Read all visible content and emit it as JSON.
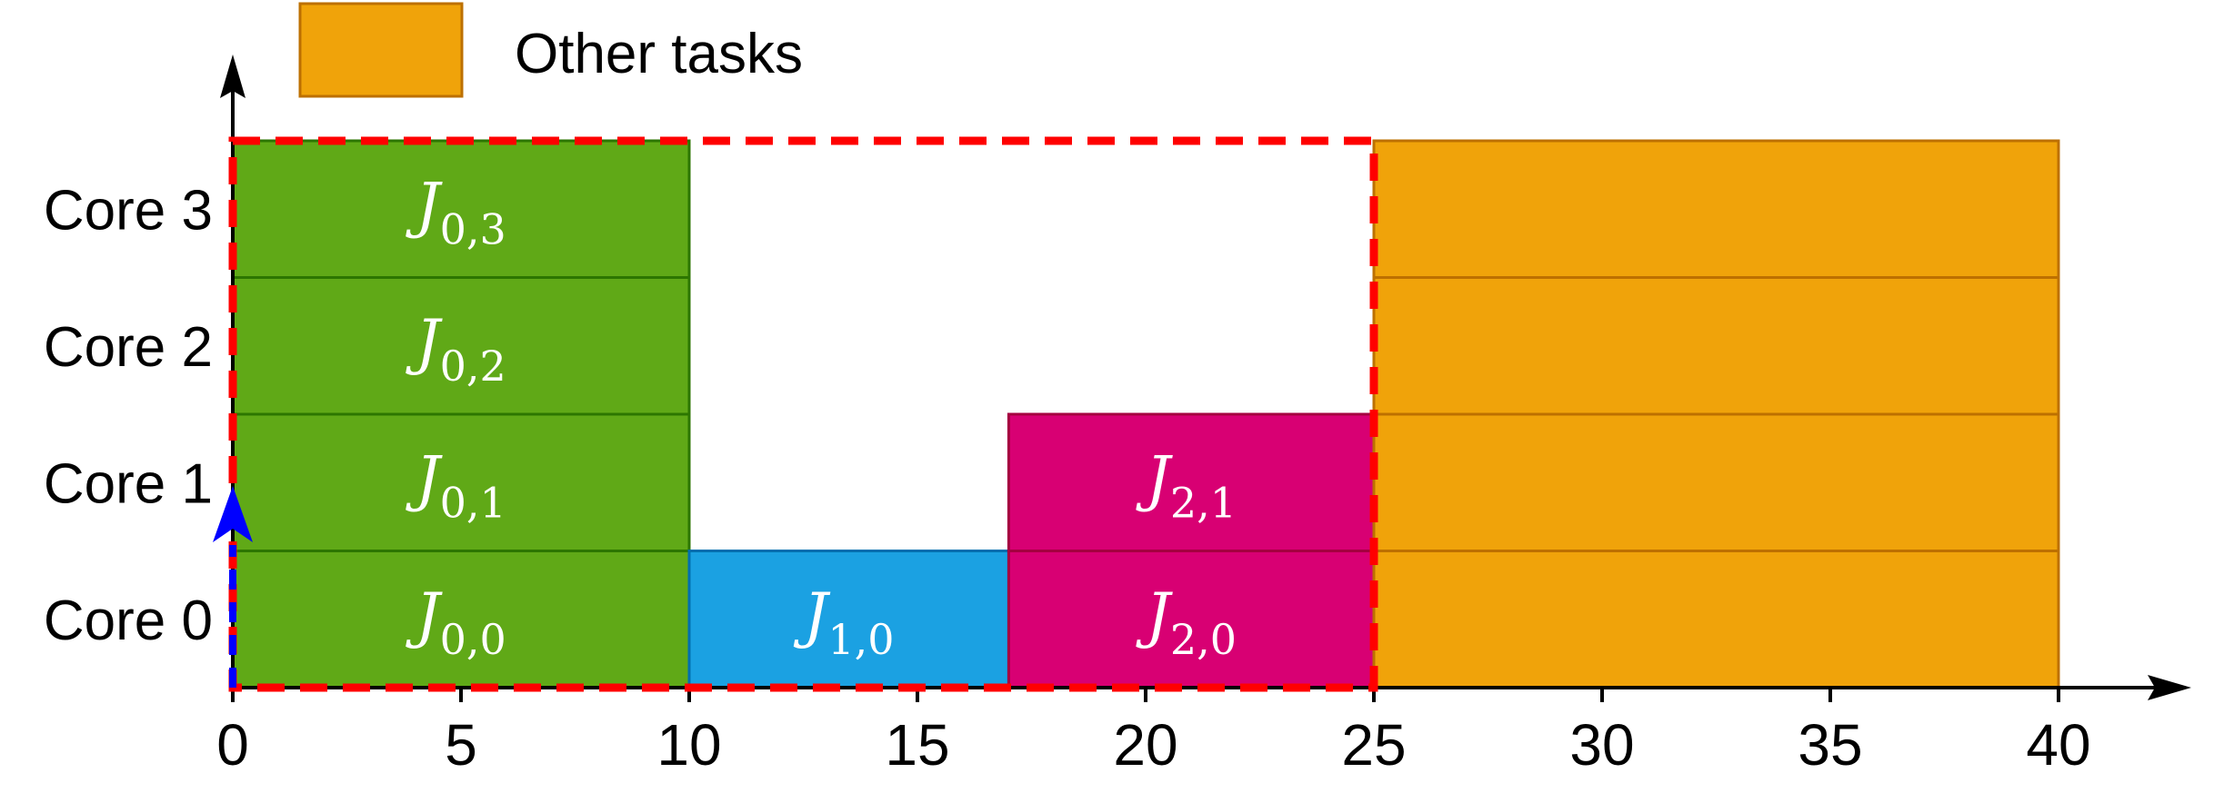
{
  "chart_data": {
    "type": "gantt",
    "title": "",
    "xlabel": "",
    "ylabel": "",
    "xlim": [
      0,
      40
    ],
    "x_ticks": [
      0,
      5,
      10,
      15,
      20,
      25,
      30,
      35,
      40
    ],
    "cores": [
      "Core 0",
      "Core 1",
      "Core 2",
      "Core 3"
    ],
    "legend": [
      {
        "label": "Other tasks",
        "color": "#F0A30A",
        "position": "top-left"
      }
    ],
    "jobs": [
      {
        "label_base": "J",
        "sub": "0,0",
        "core": 0,
        "start": 0,
        "end": 10,
        "color": "#60A917",
        "edge": "#2D7600"
      },
      {
        "label_base": "J",
        "sub": "0,1",
        "core": 1,
        "start": 0,
        "end": 10,
        "color": "#60A917",
        "edge": "#2D7600"
      },
      {
        "label_base": "J",
        "sub": "0,2",
        "core": 2,
        "start": 0,
        "end": 10,
        "color": "#60A917",
        "edge": "#2D7600"
      },
      {
        "label_base": "J",
        "sub": "0,3",
        "core": 3,
        "start": 0,
        "end": 10,
        "color": "#60A917",
        "edge": "#2D7600"
      },
      {
        "label_base": "J",
        "sub": "1,0",
        "core": 0,
        "start": 10,
        "end": 17,
        "color": "#1BA1E2",
        "edge": "#006EAF"
      },
      {
        "label_base": "J",
        "sub": "2,0",
        "core": 0,
        "start": 17,
        "end": 25,
        "color": "#D80073",
        "edge": "#A50040"
      },
      {
        "label_base": "J",
        "sub": "2,1",
        "core": 1,
        "start": 17,
        "end": 25,
        "color": "#D80073",
        "edge": "#A50040"
      }
    ],
    "other_tasks": {
      "start": 25,
      "end": 40,
      "cores": [
        0,
        1,
        2,
        3
      ],
      "color": "#F0A30A",
      "edge": "#BD7000"
    },
    "highlight_region": {
      "start": 0,
      "end": 25,
      "cores": [
        0,
        3
      ],
      "color": "#FF0000",
      "style": "dashed"
    },
    "marker": {
      "x": 0,
      "color": "#0000FF",
      "shape": "up-arrow"
    }
  }
}
